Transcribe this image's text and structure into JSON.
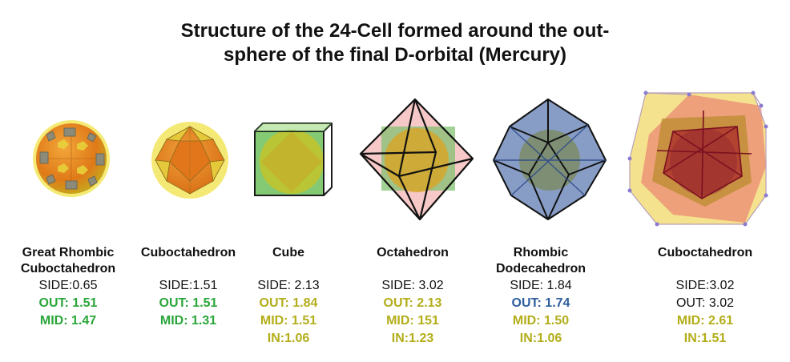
{
  "title": {
    "line1": "Structure of the 24-Cell formed around the out-",
    "line2": "sphere of the final D-orbital (Mercury)"
  },
  "colors": {
    "green": "#2aa63a",
    "olive": "#b3ad1a",
    "blue": "#2d5e9e",
    "black": "#111111"
  },
  "solids": [
    {
      "name_l1": "Great Rhombic",
      "name_l2": "Cuboctahedron",
      "lines": [
        {
          "text": "SIDE:0.65",
          "color": "#111111",
          "bold": false
        },
        {
          "text": "OUT: 1.51",
          "color": "#2aa63a",
          "bold": true
        },
        {
          "text": "MID: 1.47",
          "color": "#2aa63a",
          "bold": true
        }
      ]
    },
    {
      "name_l1": "Cuboctahedron",
      "name_l2": "",
      "lines": [
        {
          "text": "SIDE:1.51",
          "color": "#111111",
          "bold": false
        },
        {
          "text": "OUT: 1.51",
          "color": "#2aa63a",
          "bold": true
        },
        {
          "text": "MID: 1.31",
          "color": "#2aa63a",
          "bold": true
        }
      ]
    },
    {
      "name_l1": "Cube",
      "name_l2": "",
      "lines": [
        {
          "text": "SIDE: 2.13",
          "color": "#111111",
          "bold": false
        },
        {
          "text": "OUT: 1.84",
          "color": "#b3ad1a",
          "bold": true
        },
        {
          "text": "MID: 1.51",
          "color": "#b3ad1a",
          "bold": true
        },
        {
          "text": "IN:1.06",
          "color": "#b3ad1a",
          "bold": true
        }
      ]
    },
    {
      "name_l1": "Octahedron",
      "name_l2": "",
      "lines": [
        {
          "text": "SIDE: 3.02",
          "color": "#111111",
          "bold": false
        },
        {
          "text": "OUT: 2.13",
          "color": "#b3ad1a",
          "bold": true
        },
        {
          "text": "MID: 151",
          "color": "#b3ad1a",
          "bold": true
        },
        {
          "text": "IN:1.23",
          "color": "#b3ad1a",
          "bold": true
        }
      ]
    },
    {
      "name_l1": "Rhombic",
      "name_l2": "Dodecahedron",
      "lines": [
        {
          "text": "SIDE: 1.84",
          "color": "#111111",
          "bold": false
        },
        {
          "text": "OUT: 1.74",
          "color": "#2d5e9e",
          "bold": true
        },
        {
          "text": "MID: 1.50",
          "color": "#b3ad1a",
          "bold": true
        },
        {
          "text": "IN:1.06",
          "color": "#b3ad1a",
          "bold": true
        }
      ]
    },
    {
      "name_l1": "Cuboctahedron",
      "name_l2": "",
      "lines": [
        {
          "text": "SIDE:3.02",
          "color": "#111111",
          "bold": false
        },
        {
          "text": "OUT: 3.02",
          "color": "#111111",
          "bold": false
        },
        {
          "text": "MID: 2.61",
          "color": "#b3ad1a",
          "bold": true
        },
        {
          "text": "IN:1.51",
          "color": "#b3ad1a",
          "bold": true
        }
      ]
    }
  ]
}
